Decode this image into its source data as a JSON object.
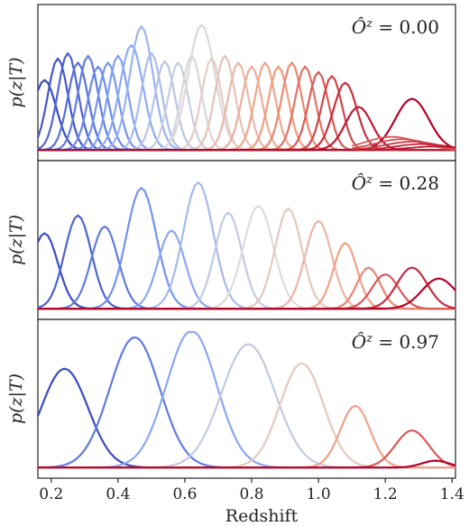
{
  "chart_data": [
    {
      "type": "line",
      "annotation": "Ô^z = 0.00",
      "annotation_parts": {
        "base": "Ô",
        "sup": "z",
        "rest": " = 0.00"
      },
      "ylabel": "p(z|T)",
      "xlabel": "",
      "xlim": [
        0.16,
        1.41
      ],
      "ylim": [
        0,
        1.0
      ],
      "n_series": 28,
      "peak_centers": [
        0.18,
        0.22,
        0.25,
        0.28,
        0.31,
        0.34,
        0.37,
        0.4,
        0.44,
        0.47,
        0.5,
        0.54,
        0.58,
        0.62,
        0.65,
        0.68,
        0.72,
        0.76,
        0.8,
        0.84,
        0.88,
        0.92,
        0.96,
        1.0,
        1.04,
        1.08,
        1.12,
        1.28
      ],
      "peak_heights": [
        0.52,
        0.68,
        0.72,
        0.65,
        0.7,
        0.62,
        0.65,
        0.7,
        0.78,
        0.92,
        0.72,
        0.66,
        0.65,
        0.7,
        0.93,
        0.68,
        0.7,
        0.65,
        0.62,
        0.65,
        0.62,
        0.65,
        0.62,
        0.58,
        0.55,
        0.5,
        0.32,
        0.38
      ],
      "peak_widths": [
        0.035,
        0.03,
        0.03,
        0.03,
        0.03,
        0.03,
        0.03,
        0.03,
        0.035,
        0.035,
        0.03,
        0.03,
        0.03,
        0.03,
        0.04,
        0.03,
        0.03,
        0.03,
        0.03,
        0.03,
        0.03,
        0.03,
        0.03,
        0.03,
        0.03,
        0.035,
        0.04,
        0.05
      ],
      "low_tail": [
        1.22,
        1.25,
        1.28,
        1.31,
        1.35
      ],
      "color_range": [
        "#3a4cc0",
        "#b40426"
      ]
    },
    {
      "type": "line",
      "annotation": "Ô^z = 0.28",
      "annotation_parts": {
        "base": "Ô",
        "sup": "z",
        "rest": " = 0.28"
      },
      "ylabel": "p(z|T)",
      "xlabel": "",
      "xlim": [
        0.16,
        1.41
      ],
      "ylim": [
        0,
        1.0
      ],
      "n_series": 15,
      "peak_centers": [
        0.18,
        0.28,
        0.36,
        0.47,
        0.56,
        0.64,
        0.73,
        0.82,
        0.91,
        1.0,
        1.08,
        1.15,
        1.2,
        1.28,
        1.36
      ],
      "peak_heights": [
        0.55,
        0.68,
        0.6,
        0.88,
        0.57,
        0.92,
        0.7,
        0.75,
        0.73,
        0.64,
        0.48,
        0.3,
        0.25,
        0.3,
        0.22
      ],
      "peak_widths": [
        0.04,
        0.04,
        0.04,
        0.045,
        0.04,
        0.045,
        0.04,
        0.045,
        0.04,
        0.04,
        0.035,
        0.035,
        0.04,
        0.045,
        0.05
      ],
      "color_range": [
        "#3a4cc0",
        "#b40426"
      ]
    },
    {
      "type": "line",
      "annotation": "Ô^z = 0.97",
      "annotation_parts": {
        "base": "Ô",
        "sup": "z",
        "rest": " = 0.97"
      },
      "ylabel": "p(z|T)",
      "xlabel": "Redshift",
      "xlim": [
        0.16,
        1.41
      ],
      "ylim": [
        0,
        1.0
      ],
      "n_series": 8,
      "xticks": [
        "0.2",
        "0.4",
        "0.6",
        "0.8",
        "1.0",
        "1.2",
        "1.4"
      ],
      "peak_centers": [
        0.24,
        0.45,
        0.62,
        0.79,
        0.95,
        1.11,
        1.28,
        1.35
      ],
      "peak_heights": [
        0.72,
        0.95,
        1.0,
        0.9,
        0.76,
        0.45,
        0.27,
        0.05
      ],
      "peak_widths": [
        0.07,
        0.075,
        0.075,
        0.08,
        0.065,
        0.045,
        0.05,
        0.04
      ],
      "color_range": [
        "#3a4cc0",
        "#b40426"
      ]
    }
  ]
}
